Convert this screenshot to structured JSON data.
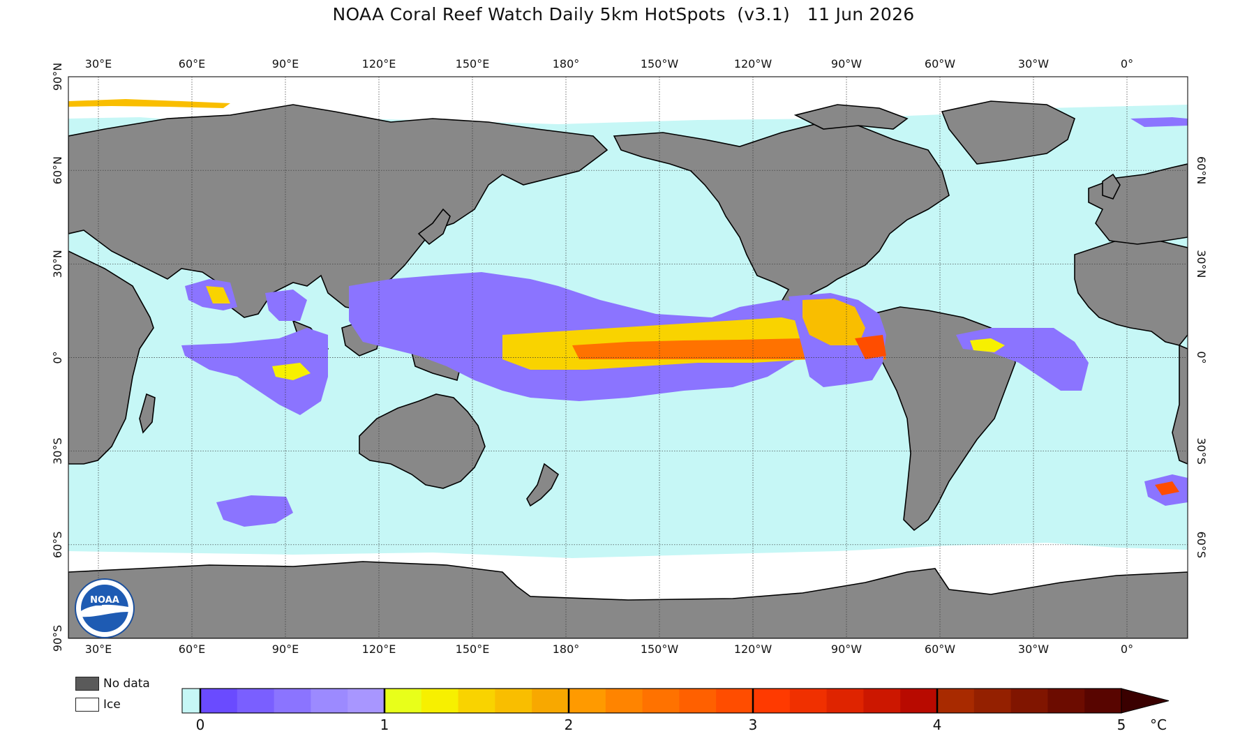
{
  "title": "NOAA Coral Reef Watch Daily 5km HotSpots  (v3.1)   11 Jun 2026",
  "map": {
    "colors": {
      "ocean": "#c6f7f6",
      "land": "#888888",
      "ice": "#ffffff",
      "no_data": "#5a5a5a",
      "coast": "#000000",
      "grid": "#333333"
    },
    "lon_labels": [
      "30°E",
      "60°E",
      "90°E",
      "120°E",
      "150°E",
      "180°",
      "150°W",
      "120°W",
      "90°W",
      "60°W",
      "30°W",
      "0°"
    ],
    "lat_labels_left": [
      "90°N",
      "60°N",
      "30°N",
      "0°",
      "30°S",
      "60°S",
      "90°S"
    ],
    "lat_labels_right": [
      "60°N",
      "30°N",
      "0°",
      "30°S",
      "60°S"
    ],
    "logo_text": "NOAA"
  },
  "legend": {
    "no_data_label": "No data",
    "ice_label": "Ice"
  },
  "colorbar": {
    "ticks": [
      "0",
      "1",
      "2",
      "3",
      "4",
      "5"
    ],
    "unit": "°C",
    "bands": [
      {
        "from": 0,
        "to": 1,
        "colors": [
          "#6a4bff",
          "#7a5fff",
          "#8b74ff",
          "#9c8aff",
          "#a896ff"
        ]
      },
      {
        "from": 1,
        "to": 2,
        "colors": [
          "#e8ff1a",
          "#f7f000",
          "#f9d300",
          "#f9be00",
          "#f8a800"
        ]
      },
      {
        "from": 2,
        "to": 3,
        "colors": [
          "#ff9a00",
          "#ff8400",
          "#ff7200",
          "#ff6000",
          "#ff4d00"
        ]
      },
      {
        "from": 3,
        "to": 4,
        "colors": [
          "#ff3a00",
          "#f03000",
          "#df2400",
          "#cc1700",
          "#b80a00"
        ]
      },
      {
        "from": 4,
        "to": 5,
        "colors": [
          "#a82a00",
          "#942000",
          "#801500",
          "#6c0c00",
          "#580500"
        ]
      }
    ],
    "below_zero_color": "#c6f7f6",
    "extend_color": "#3a0000"
  }
}
